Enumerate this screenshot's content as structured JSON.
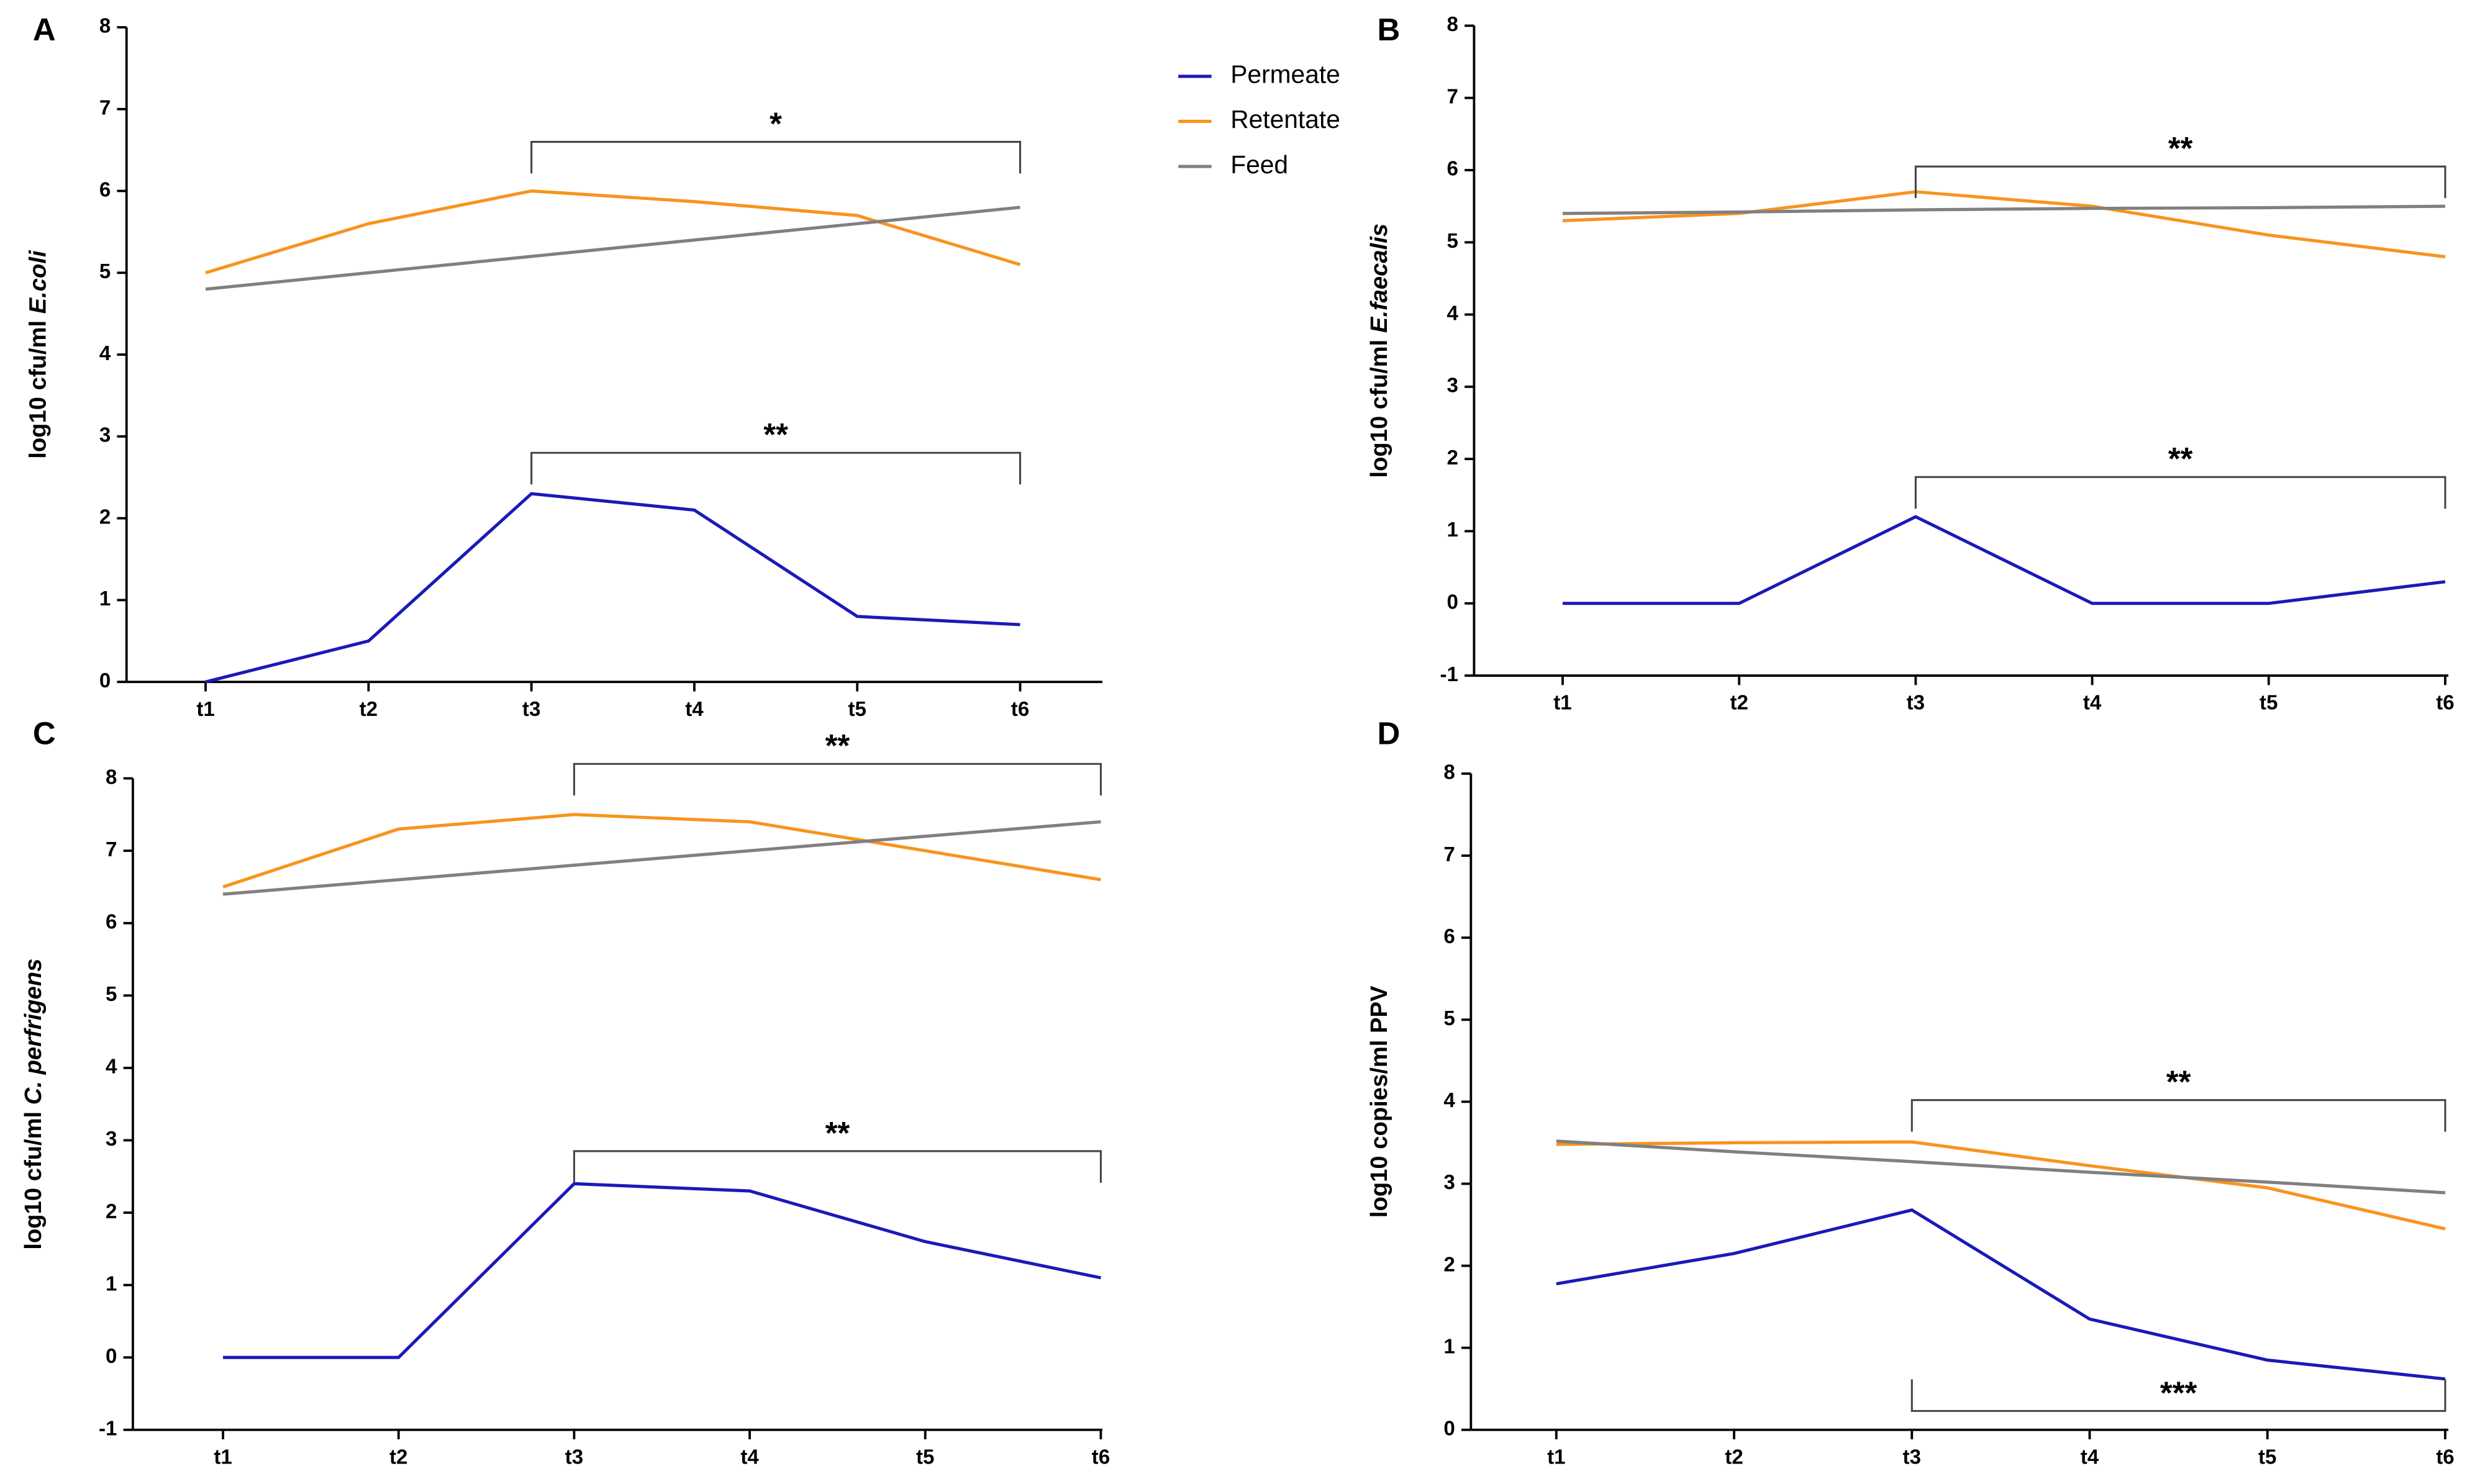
{
  "chart_data": [
    {
      "type": "line",
      "panel": "A",
      "y_label": "log10 cfu/ml",
      "y_label_species": "E.coli",
      "categories": [
        "t1",
        "t2",
        "t3",
        "t4",
        "t5",
        "t6"
      ],
      "ylim": [
        0,
        8
      ],
      "yticks": [
        0,
        1,
        2,
        3,
        4,
        5,
        6,
        7,
        8
      ],
      "series": [
        {
          "name": "Permeate",
          "color": "#1a1ab8",
          "values": [
            0,
            0.5,
            2.3,
            2.1,
            0.8,
            0.7
          ]
        },
        {
          "name": "Retentate",
          "color": "#f7941d",
          "values": [
            5.0,
            5.6,
            6.0,
            5.87,
            5.7,
            5.1
          ]
        },
        {
          "name": "Feed",
          "color": "#808080",
          "values": [
            4.8,
            5.0,
            5.2,
            5.4,
            5.6,
            5.8
          ]
        }
      ],
      "annotations": [
        {
          "text": "*",
          "level": 6.6
        },
        {
          "text": "**",
          "level": 2.8
        }
      ]
    },
    {
      "type": "line",
      "panel": "B",
      "y_label": "log10 cfu/ml",
      "y_label_species": "E.faecalis",
      "categories": [
        "t1",
        "t2",
        "t3",
        "t4",
        "t5",
        "t6"
      ],
      "ylim": [
        -1,
        8
      ],
      "yticks": [
        -1,
        0,
        1,
        2,
        3,
        4,
        5,
        6,
        7,
        8
      ],
      "series": [
        {
          "name": "Permeate",
          "color": "#1a1ab8",
          "values": [
            0,
            0,
            1.2,
            0,
            0,
            0.3
          ]
        },
        {
          "name": "Retentate",
          "color": "#f7941d",
          "values": [
            5.3,
            5.4,
            5.7,
            5.5,
            5.1,
            4.8
          ]
        },
        {
          "name": "Feed",
          "color": "#808080",
          "values": [
            5.4,
            5.42,
            5.45,
            5.47,
            5.48,
            5.5
          ]
        }
      ],
      "annotations": [
        {
          "text": "**",
          "level": 6.05
        },
        {
          "text": "**",
          "level": 1.75
        }
      ]
    },
    {
      "type": "line",
      "panel": "C",
      "y_label": "log10 cfu/ml",
      "y_label_species": "C. perfrigens",
      "categories": [
        "t1",
        "t2",
        "t3",
        "t4",
        "t5",
        "t6"
      ],
      "ylim": [
        -1,
        8
      ],
      "yticks": [
        -1,
        0,
        1,
        2,
        3,
        4,
        5,
        6,
        7,
        8
      ],
      "series": [
        {
          "name": "Permeate",
          "color": "#1a1ab8",
          "values": [
            0,
            0,
            2.4,
            2.3,
            1.6,
            1.1
          ]
        },
        {
          "name": "Retentate",
          "color": "#f7941d",
          "values": [
            6.5,
            7.3,
            7.5,
            7.4,
            7.0,
            6.6
          ]
        },
        {
          "name": "Feed",
          "color": "#808080",
          "values": [
            6.4,
            6.6,
            6.8,
            7.0,
            7.2,
            7.4
          ]
        }
      ],
      "annotations": [
        {
          "text": "**",
          "level": 8.2
        },
        {
          "text": "**",
          "level": 2.85
        }
      ]
    },
    {
      "type": "line",
      "panel": "D",
      "y_label": "log10 copies/ml PPV",
      "categories": [
        "t1",
        "t2",
        "t3",
        "t4",
        "t5",
        "t6"
      ],
      "ylim": [
        0,
        8
      ],
      "yticks": [
        0,
        1,
        2,
        3,
        4,
        5,
        6,
        7,
        8
      ],
      "series": [
        {
          "name": "Permeate",
          "color": "#1a1ab8",
          "values": [
            1.78,
            2.15,
            2.68,
            1.35,
            0.85,
            0.62
          ]
        },
        {
          "name": "Retentate",
          "color": "#f7941d",
          "values": [
            3.48,
            3.5,
            3.51,
            3.22,
            2.95,
            2.45
          ]
        },
        {
          "name": "Feed",
          "color": "#808080",
          "values": [
            3.52,
            3.39,
            3.27,
            3.14,
            3.02,
            2.89
          ]
        }
      ],
      "annotations": [
        {
          "text": "**",
          "level": 4.02
        },
        {
          "text": "***",
          "level": 0.23
        }
      ]
    }
  ]
}
